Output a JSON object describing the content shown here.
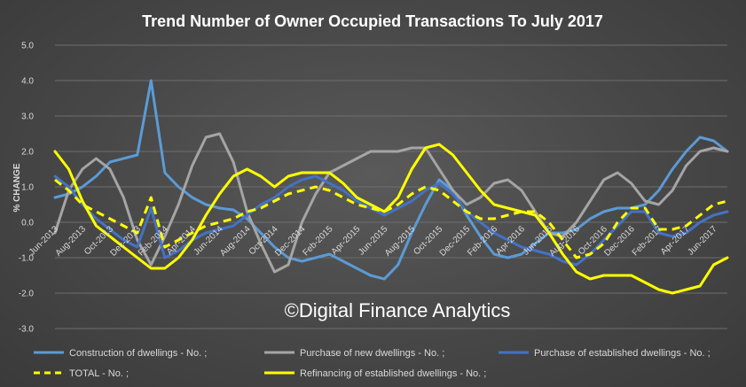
{
  "chart_data": {
    "type": "line",
    "title": "Trend Number of Owner Occupied Transactions To July 2017",
    "ylabel": "% CHANGE",
    "xlabel": "",
    "ylim": [
      -3.0,
      5.0
    ],
    "yticks": [
      "5.0",
      "4.0",
      "3.0",
      "2.0",
      "1.0",
      "0.0",
      "-1.0",
      "-2.0",
      "-3.0"
    ],
    "xtick_labels": [
      "Jun-2013",
      "Aug-2013",
      "Oct-2013",
      "Dec-2013",
      "Feb-2014",
      "Apr-2014",
      "Jun-2014",
      "Aug-2014",
      "Oct-2014",
      "Dec-2014",
      "Feb-2015",
      "Apr-2015",
      "Jun-2015",
      "Aug-2015",
      "Oct-2015",
      "Dec-2015",
      "Feb-2016",
      "Apr-2016",
      "Jun-2016",
      "Aug-2016",
      "Oct-2016",
      "Dec-2016",
      "Feb-2017",
      "Apr-2017",
      "Jun-2017"
    ],
    "grid": true,
    "legend_position": "bottom",
    "watermark": "©Digital Finance Analytics",
    "series": [
      {
        "name": "Construction of dwellings - No. ;",
        "color": "#5b9bd5",
        "style": "solid",
        "values": [
          0.7,
          0.8,
          1.0,
          1.3,
          1.7,
          1.8,
          1.9,
          4.0,
          1.4,
          1.0,
          0.7,
          0.5,
          0.4,
          0.35,
          0.1,
          -0.3,
          -0.7,
          -1.0,
          -1.1,
          -1.0,
          -0.9,
          -1.1,
          -1.3,
          -1.5,
          -1.6,
          -1.2,
          -0.3,
          0.5,
          1.2,
          0.9,
          0.2,
          -0.4,
          -0.9,
          -1.0,
          -0.9,
          -0.6,
          -0.3,
          -0.3,
          -0.2,
          0.1,
          0.3,
          0.4,
          0.4,
          0.5,
          0.9,
          1.5,
          2.0,
          2.4,
          2.3,
          2.0
        ]
      },
      {
        "name": "Purchase of new dwellings - No. ;",
        "color": "#a5a5a5",
        "style": "solid",
        "values": [
          -0.3,
          0.9,
          1.5,
          1.8,
          1.5,
          0.7,
          -0.5,
          -1.2,
          -0.4,
          0.5,
          1.6,
          2.4,
          2.5,
          1.7,
          0.3,
          -0.6,
          -1.4,
          -1.2,
          0.0,
          0.8,
          1.4,
          1.6,
          1.8,
          2.0,
          2.0,
          2.0,
          2.1,
          2.1,
          1.5,
          0.9,
          0.5,
          0.7,
          1.1,
          1.2,
          0.9,
          0.3,
          -0.3,
          -0.4,
          0.0,
          0.6,
          1.2,
          1.4,
          1.1,
          0.6,
          0.5,
          0.9,
          1.6,
          2.0,
          2.1,
          2.0
        ]
      },
      {
        "name": "Purchase of established dwellings - No. ;",
        "color": "#4472c4",
        "style": "solid",
        "values": [
          1.3,
          1.0,
          0.5,
          0.1,
          -0.2,
          -0.5,
          -0.7,
          0.4,
          -1.0,
          -0.8,
          -0.5,
          -0.3,
          -0.2,
          -0.1,
          0.2,
          0.5,
          0.7,
          1.0,
          1.2,
          1.3,
          1.1,
          0.9,
          0.6,
          0.4,
          0.2,
          0.4,
          0.6,
          0.9,
          1.1,
          0.8,
          0.3,
          0.0,
          -0.3,
          -0.5,
          -0.7,
          -0.8,
          -0.9,
          -1.1,
          -1.2,
          -0.9,
          -0.5,
          -0.1,
          0.3,
          0.3,
          -0.3,
          -0.4,
          -0.3,
          0.0,
          0.2,
          0.3
        ]
      },
      {
        "name": "TOTAL - No. ;",
        "color": "#ffff00",
        "style": "dashed",
        "values": [
          1.2,
          0.9,
          0.5,
          0.3,
          0.1,
          -0.1,
          -0.3,
          0.7,
          -0.7,
          -0.5,
          -0.3,
          -0.1,
          0.0,
          0.1,
          0.3,
          0.4,
          0.6,
          0.8,
          0.9,
          1.0,
          0.9,
          0.7,
          0.5,
          0.4,
          0.3,
          0.5,
          0.8,
          1.0,
          0.9,
          0.6,
          0.3,
          0.1,
          0.1,
          0.2,
          0.3,
          0.3,
          0.0,
          -0.5,
          -1.0,
          -0.9,
          -0.6,
          0.0,
          0.4,
          0.4,
          -0.2,
          -0.2,
          -0.1,
          0.2,
          0.5,
          0.6
        ]
      },
      {
        "name": "Refinancing of established dwellings - No. ;",
        "color": "#ffff00",
        "style": "solid",
        "values": [
          2.0,
          1.5,
          0.6,
          -0.1,
          -0.4,
          -0.7,
          -1.0,
          -1.3,
          -1.3,
          -1.0,
          -0.5,
          0.2,
          0.8,
          1.3,
          1.5,
          1.3,
          1.0,
          1.3,
          1.4,
          1.4,
          1.4,
          1.1,
          0.7,
          0.5,
          0.3,
          0.7,
          1.5,
          2.1,
          2.2,
          1.9,
          1.4,
          0.9,
          0.5,
          0.4,
          0.3,
          0.2,
          -0.3,
          -0.9,
          -1.4,
          -1.6,
          -1.5,
          -1.5,
          -1.5,
          -1.7,
          -1.9,
          -2.0,
          -1.9,
          -1.8,
          -1.2,
          -1.0
        ]
      }
    ]
  }
}
